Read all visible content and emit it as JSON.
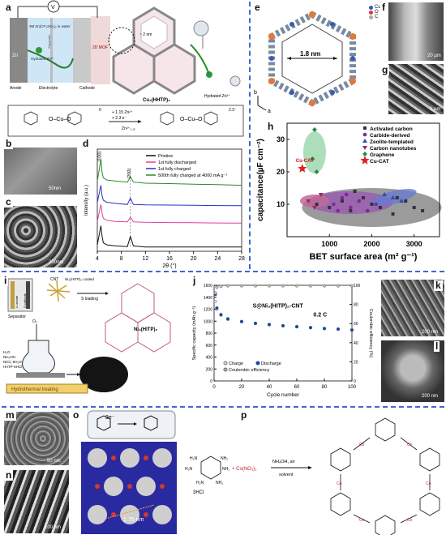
{
  "labels": {
    "a": "a",
    "b": "b",
    "c": "c",
    "d": "d",
    "e": "e",
    "f": "f",
    "g": "g",
    "h": "h",
    "i": "i",
    "j": "j",
    "k": "k",
    "l": "l",
    "m": "m",
    "n": "n",
    "o": "o",
    "p": "p"
  },
  "panel_a": {
    "v_label": "V",
    "zn": "Zn",
    "electrolyte_text": "3M Zn(CF₃SO₃)₂ in water",
    "separator": "Separator",
    "hydrated_zn": "Hydrated Zn²⁺",
    "cathode_mof": "2D MOF",
    "anode": "Anode",
    "electrolyte": "Electrolyte",
    "cathode": "Cathode",
    "structure_name": "Cu₃(HHTP)₂",
    "pore": "~ 2 nm",
    "hydrated_zn2": "Hydrated Zn²⁺",
    "reaction_top": "+ 1.15 Zn²⁺",
    "reaction_mid": "+ 2.3 e⁻",
    "reaction_bottom": "Zn²⁺₁.₁₅",
    "charge_left": "0",
    "charge_right": "2.3⁻"
  },
  "sem_scalebars": {
    "b": "50nm",
    "c": "200nm",
    "f": "20 µm",
    "g": "1 µm",
    "k": "200 nm",
    "l": "200 nm",
    "m": "50 nm",
    "n": "100 nm"
  },
  "panel_d": {
    "legend": [
      "Pristine",
      "1st fully discharged",
      "1st fully charged",
      "500th fully charged at 4000 mA g⁻¹"
    ],
    "peak_labels": [
      "(100)",
      "(200)"
    ],
    "xlabel": "2θ (°)",
    "ylabel": "Intensity (a.u.)",
    "xticks": [
      "4",
      "8",
      "12",
      "16",
      "20",
      "24",
      "28"
    ]
  },
  "panel_e": {
    "pore": "1.8 nm",
    "legend": [
      "Cu",
      "O",
      "C"
    ],
    "axis_b": "b",
    "axis_a": "a"
  },
  "panel_i": {
    "li_anode": "Li anode",
    "s_cathode": "S cathode",
    "separator": "Separator",
    "cnt": "CNT",
    "coated": "Ni₃(HITP)₂ coated",
    "s_loading": "S loading",
    "ni_name": "Ni₃(HITP)₂",
    "o2": "O₂",
    "reagents": [
      "H₂O",
      "NH₄OH",
      "NiCl₂·6H₂O",
      "HATP·6HCl"
    ],
    "hydrothermal": "Hydrothermal treating"
  },
  "panel_o": {
    "electrons": "3e⁻",
    "distance": "1.75 nm"
  },
  "panel_p": {
    "hcl": "3HCl",
    "cu": "+ Co(NO₃)₂",
    "cond_top": "NH₄OH, air",
    "cond_bottom": "solvent",
    "metal": "Co"
  },
  "colors": {
    "dash": "#3a6ad0",
    "pristine": "#111111",
    "discharged": "#e0409a",
    "charged": "#2a2fc8",
    "cycled": "#2a8a2a"
  },
  "chart_data": [
    {
      "type": "line",
      "panel": "d",
      "xlabel": "2θ (°)",
      "ylabel": "Intensity (a.u.)",
      "xlim": [
        4,
        28
      ],
      "series": [
        {
          "name": "Pristine",
          "color": "#111111",
          "x": [
            4,
            4.6,
            4.8,
            5,
            5.6,
            7,
            9,
            9.5,
            10,
            12,
            16,
            20,
            24,
            28
          ],
          "y": [
            0.3,
            1.2,
            0.7,
            0.4,
            0.3,
            0.25,
            0.22,
            0.7,
            0.25,
            0.2,
            0.2,
            0.2,
            0.2,
            0.2
          ]
        },
        {
          "name": "1st fully discharged",
          "color": "#e0409a",
          "x": [
            4,
            4.6,
            4.8,
            5,
            5.6,
            7,
            9,
            9.5,
            10,
            12,
            16,
            20,
            24,
            28
          ],
          "y": [
            1.4,
            2.2,
            1.8,
            1.55,
            1.45,
            1.4,
            1.38,
            1.6,
            1.38,
            1.36,
            1.35,
            1.34,
            1.33,
            1.32
          ]
        },
        {
          "name": "1st fully charged",
          "color": "#2a2fc8",
          "x": [
            4,
            4.6,
            4.8,
            5,
            5.6,
            7,
            9,
            9.5,
            10,
            12,
            16,
            20,
            24,
            28
          ],
          "y": [
            2.3,
            3.1,
            2.6,
            2.4,
            2.3,
            2.25,
            2.2,
            2.5,
            2.2,
            2.18,
            2.17,
            2.16,
            2.15,
            2.14
          ]
        },
        {
          "name": "500th fully charged at 4000 mA g⁻¹",
          "color": "#2a8a2a",
          "x": [
            4,
            4.6,
            4.8,
            5,
            5.6,
            7,
            9,
            9.5,
            10,
            12,
            16,
            20,
            24,
            28
          ],
          "y": [
            3.3,
            4.3,
            3.7,
            3.45,
            3.35,
            3.3,
            3.25,
            3.5,
            3.25,
            3.2,
            3.18,
            3.15,
            3.13,
            3.1
          ]
        }
      ]
    },
    {
      "type": "scatter",
      "panel": "h",
      "xlabel": "BET surface area (m² g⁻¹)",
      "ylabel": "capacitance(µF cm⁻²)",
      "xlim": [
        0,
        3600
      ],
      "ylim": [
        0,
        35
      ],
      "xticks": [
        1000,
        2000,
        3000
      ],
      "yticks": [
        10,
        20,
        30
      ],
      "legend": [
        "Activated carbon",
        "Carbide-derived",
        "Zeolite-templated",
        "Carbon nanotubes",
        "Graphene",
        "Cu-CAT"
      ],
      "series": [
        {
          "name": "Activated carbon",
          "marker": "square",
          "color": "#333333",
          "points": [
            [
              700,
              10
            ],
            [
              1000,
              9
            ],
            [
              1300,
              11
            ],
            [
              1500,
              8
            ],
            [
              1800,
              12
            ],
            [
              2000,
              10
            ],
            [
              2200,
              9
            ],
            [
              2500,
              7
            ],
            [
              2800,
              11
            ],
            [
              3000,
              9
            ],
            [
              3200,
              8
            ],
            [
              1600,
              14
            ],
            [
              2600,
              12
            ]
          ]
        },
        {
          "name": "Carbide-derived",
          "marker": "circle",
          "color": "#7a2a9a",
          "points": [
            [
              1100,
              10
            ],
            [
              1300,
              12
            ],
            [
              1500,
              9
            ],
            [
              1700,
              11
            ],
            [
              1900,
              8
            ],
            [
              2100,
              10
            ],
            [
              1400,
              13
            ],
            [
              1200,
              8
            ]
          ]
        },
        {
          "name": "Zeolite-templated",
          "marker": "triangle-up",
          "color": "#3a4ab0",
          "points": [
            [
              2300,
              13
            ],
            [
              2500,
              12
            ],
            [
              2700,
              11
            ]
          ]
        },
        {
          "name": "Carbon nanotubes",
          "marker": "triangle-down",
          "color": "#9a2a6a",
          "points": [
            [
              500,
              11
            ],
            [
              650,
              9
            ],
            [
              800,
              13
            ]
          ]
        },
        {
          "name": "Graphene",
          "marker": "diamond",
          "color": "#2a8a4a",
          "points": [
            [
              600,
              24
            ],
            [
              650,
              33
            ],
            [
              700,
              20
            ]
          ]
        },
        {
          "name": "Cu-CAT",
          "marker": "star",
          "color": "#e02020",
          "points": [
            [
              360,
              21
            ]
          ]
        }
      ]
    },
    {
      "type": "scatter",
      "panel": "j",
      "title": "S@Ni₃(HITP)₂-CNT",
      "annotation": "0.2 C",
      "xlabel": "Cycle number",
      "ylabel": "Specific capacity (mAh g⁻¹)",
      "y2label": "Coulombic efficiency (%)",
      "xlim": [
        0,
        100
      ],
      "ylim": [
        0,
        1600
      ],
      "y2lim": [
        0,
        100
      ],
      "xticks": [
        0,
        20,
        40,
        60,
        80,
        100
      ],
      "yticks": [
        0,
        200,
        400,
        600,
        800,
        1000,
        1200,
        1400,
        1600
      ],
      "y2ticks": [
        0,
        20,
        40,
        60,
        80,
        100
      ],
      "legend": [
        "Charge",
        "Discharge",
        "Coulombic efficiency"
      ],
      "series": [
        {
          "name": "Charge",
          "x": [
            1,
            2,
            5,
            10,
            20,
            30,
            40,
            50,
            60,
            70,
            80,
            90,
            100
          ],
          "y": [
            1330,
            1200,
            1100,
            1030,
            990,
            960,
            940,
            920,
            905,
            890,
            875,
            865,
            850
          ]
        },
        {
          "name": "Discharge",
          "x": [
            1,
            2,
            5,
            10,
            20,
            30,
            40,
            50,
            60,
            70,
            80,
            90,
            100
          ],
          "y": [
            1450,
            1220,
            1110,
            1040,
            995,
            965,
            945,
            925,
            908,
            893,
            878,
            868,
            853
          ]
        },
        {
          "name": "Coulombic efficiency",
          "axis": "y2",
          "x": [
            1,
            2,
            5,
            10,
            20,
            30,
            40,
            50,
            60,
            70,
            80,
            90,
            100
          ],
          "y": [
            92,
            98,
            99,
            99.5,
            99.5,
            99.5,
            99.5,
            99.5,
            99.5,
            99.5,
            99.5,
            99.5,
            99.5
          ]
        }
      ]
    }
  ]
}
